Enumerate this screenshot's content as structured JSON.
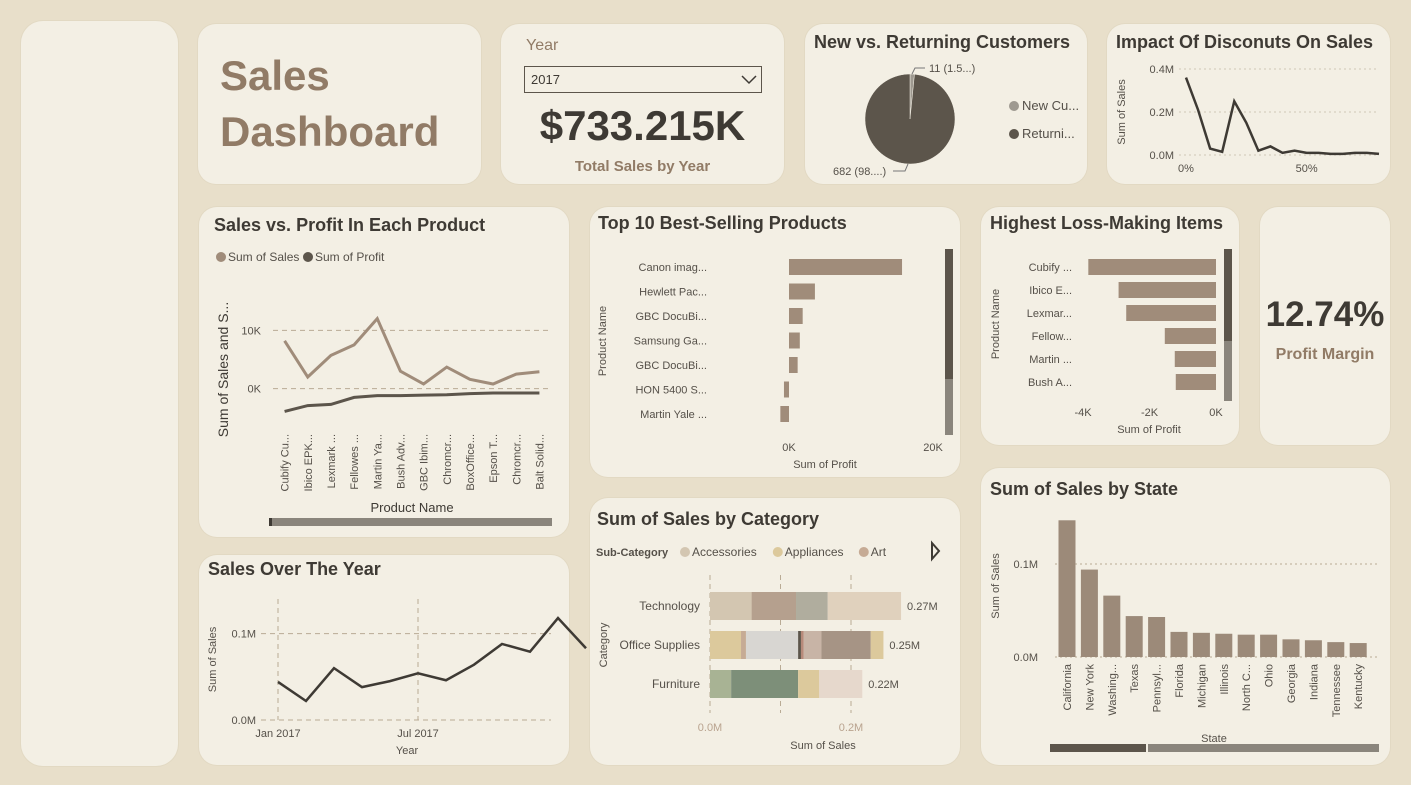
{
  "header": {
    "title_line1": "Sales",
    "title_line2": "Dashboard"
  },
  "year_card": {
    "label": "Year",
    "selected": "2017",
    "total": "$733.215K",
    "caption": "Total Sales by Year"
  },
  "margin_card": {
    "value": "12.74%",
    "caption": "Profit Margin"
  },
  "colors": {
    "bg": "#e8dfca",
    "card": "#f3efe4",
    "tan": "#a08c7a",
    "dark": "#5c554b",
    "text": "#3e3a34"
  },
  "chart_data": [
    {
      "id": "new-returning",
      "type": "pie",
      "title": "New vs. Returning Customers",
      "labels": [
        "New Cu...",
        "Returni..."
      ],
      "values": [
        11,
        682
      ],
      "data_labels": [
        "11 (1.5...)",
        "682 (98....)"
      ],
      "colors": [
        "#9e9990",
        "#5c554b"
      ]
    },
    {
      "id": "discounts",
      "type": "line",
      "title": "Impact Of Disconuts On Sales",
      "ylabel": "Sum of Sales",
      "ylim": [
        0,
        400000
      ],
      "yticks": [
        "0.0M",
        "0.2M",
        "0.4M"
      ],
      "xticks": [
        "0%",
        "50%"
      ],
      "x": [
        0,
        5,
        10,
        15,
        20,
        25,
        30,
        35,
        40,
        45,
        50,
        55,
        60,
        65,
        70,
        75,
        80
      ],
      "values": [
        360000,
        210000,
        30000,
        15000,
        250000,
        150000,
        20000,
        40000,
        10000,
        20000,
        10000,
        10000,
        5000,
        5000,
        10000,
        10000,
        5000
      ],
      "color": "#3e3a34"
    },
    {
      "id": "sales-profit-product",
      "type": "line",
      "title": "Sales vs. Profit In Each Product",
      "xlabel": "Product Name",
      "ylabel": "Sum of Sales and S...",
      "ylim": [
        -4000,
        14000
      ],
      "yticks": [
        "0K",
        "10K"
      ],
      "categories": [
        "Cubify Cu...",
        "Ibico EPK...",
        "Lexmark ...",
        "Fellowes ...",
        "Martin Ya...",
        "Bush Adv...",
        "GBC Ibim...",
        "Chromcr...",
        "BoxOffice...",
        "Epson T...",
        "Chromcr...",
        "Balt Solid..."
      ],
      "series": [
        {
          "name": "Sum of Sales",
          "values": [
            8200,
            2000,
            5700,
            7500,
            12000,
            3000,
            800,
            3700,
            1600,
            800,
            2500,
            2900
          ],
          "color": "#a08c7a"
        },
        {
          "name": "Sum of Profit",
          "values": [
            -3900,
            -2900,
            -2700,
            -1500,
            -1200,
            -1200,
            -1100,
            -1050,
            -850,
            -750,
            -750,
            -750
          ],
          "color": "#5c554b"
        }
      ]
    },
    {
      "id": "sales-over-year",
      "type": "line",
      "title": "Sales Over The Year",
      "xlabel": "Year",
      "ylabel": "Sum of Sales",
      "ylim": [
        0,
        140000
      ],
      "yticks": [
        "0.0M",
        "0.1M"
      ],
      "xticks": [
        "Jan 2017",
        "Jul 2017"
      ],
      "values": [
        44000,
        22000,
        60000,
        38000,
        45000,
        54000,
        46000,
        64000,
        88000,
        79000,
        118000,
        83000
      ],
      "color": "#3e3a34"
    },
    {
      "id": "top10",
      "type": "bar",
      "title": "Top 10 Best-Selling Products",
      "xlabel": "Sum of Profit",
      "ylabel": "Product Name",
      "xlim": [
        -2000,
        22000
      ],
      "xticks": [
        "0K",
        "20K"
      ],
      "categories": [
        "Canon imag...",
        "Hewlett Pac...",
        "GBC DocuBi...",
        "Samsung Ga...",
        "GBC DocuBi...",
        "HON 5400 S...",
        "Martin Yale ..."
      ],
      "values": [
        15700,
        3600,
        1900,
        1500,
        1200,
        -700,
        -1200
      ],
      "color": "#a08c7a"
    },
    {
      "id": "loss-items",
      "type": "bar",
      "title": "Highest Loss-Making Items",
      "xlabel": "Sum of Profit",
      "ylabel": "Product Name",
      "xlim": [
        -4000,
        0
      ],
      "xticks": [
        "-4K",
        "-2K",
        "0K"
      ],
      "categories": [
        "Cubify ...",
        "Ibico E...",
        "Lexmar...",
        "Fellow...",
        "Martin ...",
        "Bush A..."
      ],
      "values": [
        -3840,
        -2930,
        -2700,
        -1540,
        -1240,
        -1210
      ],
      "color": "#a08c7a"
    },
    {
      "id": "category",
      "type": "bar",
      "title": "Sum of Sales by Category",
      "xlabel": "Sum of Sales",
      "ylabel": "Category",
      "legend_title": "Sub-Category",
      "legend": [
        "Accessories",
        "Appliances",
        "Art"
      ],
      "legend_colors": [
        "#d3c6b1",
        "#dcc99c",
        "#c6ab95"
      ],
      "xlim": [
        0,
        300000
      ],
      "xticks": [
        "0.0M",
        "0.2M"
      ],
      "categories": [
        "Technology",
        "Office Supplies",
        "Furniture"
      ],
      "totals": [
        271000,
        246000,
        216000
      ],
      "value_labels": [
        "0.27M",
        "0.25M",
        "0.22M"
      ],
      "segments": [
        [
          {
            "v": 59000,
            "c": "#d3c6b1"
          },
          {
            "v": 63000,
            "c": "#b5a08e"
          },
          {
            "v": 45000,
            "c": "#b0ad9e"
          },
          {
            "v": 104000,
            "c": "#e0d1bd"
          }
        ],
        [
          {
            "v": 44000,
            "c": "#dcc99c"
          },
          {
            "v": 7000,
            "c": "#c6ab95"
          },
          {
            "v": 74000,
            "c": "#d8d6d2"
          },
          {
            "v": 4000,
            "c": "#5c554b"
          },
          {
            "v": 4000,
            "c": "#b78a7a"
          },
          {
            "v": 25000,
            "c": "#c8b4a6"
          },
          {
            "v": 70000,
            "c": "#a69485"
          },
          {
            "v": 18000,
            "c": "#dcc99c"
          }
        ],
        [
          {
            "v": 30000,
            "c": "#a8b394"
          },
          {
            "v": 95000,
            "c": "#7d8f79"
          },
          {
            "v": 30000,
            "c": "#dcc99c"
          },
          {
            "v": 61000,
            "c": "#e6d8cc"
          }
        ]
      ]
    },
    {
      "id": "state",
      "type": "bar",
      "title": "Sum of Sales by State",
      "xlabel": "State",
      "ylabel": "Sum of Sales",
      "ylim": [
        0,
        150000
      ],
      "yticks": [
        "0.0M",
        "0.1M"
      ],
      "categories": [
        "California",
        "New York",
        "Washing...",
        "Texas",
        "Pennsyl...",
        "Florida",
        "Michigan",
        "Illinois",
        "North C...",
        "Ohio",
        "Georgia",
        "Indiana",
        "Tennessee",
        "Kentucky"
      ],
      "values": [
        147000,
        94000,
        66000,
        44000,
        43000,
        27000,
        26000,
        25000,
        24000,
        24000,
        19000,
        18000,
        16000,
        15000
      ],
      "color": "#9c8a79"
    }
  ]
}
